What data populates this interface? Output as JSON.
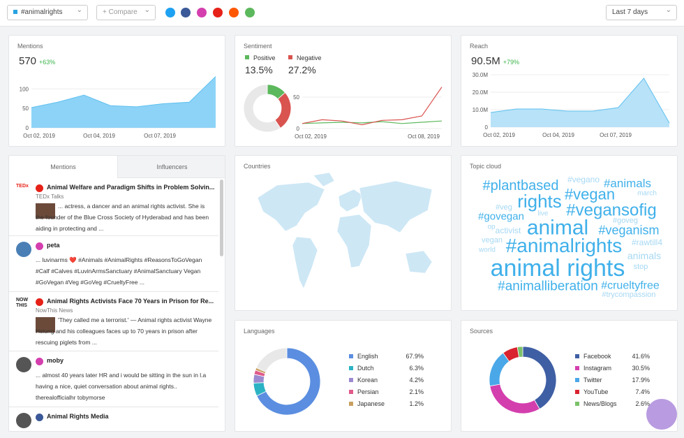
{
  "header": {
    "search": "#animalrights",
    "compare": "+ Compare",
    "range": "Last 7 days"
  },
  "mentions": {
    "title": "Mentions",
    "value": "570",
    "change": "+63%",
    "chart": {
      "type": "area",
      "color": "#8dd3f7",
      "ylim": [
        0,
        140
      ],
      "yticks": [
        0,
        50,
        100
      ],
      "xlabels": [
        "Oct 02, 2019",
        "Oct 04, 2019",
        "Oct 07, 2019"
      ],
      "values": [
        52,
        66,
        84,
        57,
        54,
        62,
        66,
        132
      ]
    }
  },
  "sentiment": {
    "title": "Sentiment",
    "chart": {
      "type": "donut-line",
      "ylim": [
        0,
        70
      ],
      "yticks": [
        0,
        50
      ],
      "xlabels": [
        "Oct 02, 2019",
        "Oct 08, 2019"
      ],
      "series": [
        {
          "name": "Positive",
          "color": "#5cb85c",
          "share": 13.5,
          "share_label": "13.5%",
          "values": [
            8,
            9,
            10,
            9,
            11,
            8,
            10,
            12
          ]
        },
        {
          "name": "Negative",
          "color": "#d9534f",
          "share": 27.2,
          "share_label": "27.2%",
          "values": [
            8,
            14,
            12,
            6,
            13,
            14,
            20,
            66
          ]
        }
      ]
    }
  },
  "reach": {
    "title": "Reach",
    "value": "90.5M",
    "change": "+79%",
    "chart": {
      "type": "area",
      "color": "#b7e2f8",
      "ylim": [
        0,
        30
      ],
      "yticks": [
        0,
        {
          "value": 10,
          "label": "10.0M"
        },
        {
          "value": 20,
          "label": "20.0M"
        },
        {
          "value": 30,
          "label": "30.0M"
        }
      ],
      "xlabels": [
        "Oct 02, 2019",
        "Oct 04, 2019",
        "Oct 07, 2019"
      ],
      "values": [
        8.4,
        10.4,
        10.4,
        9.2,
        9.2,
        11.2,
        28,
        2.4
      ]
    }
  },
  "feed": {
    "tabs": [
      "Mentions",
      "Influencers"
    ],
    "items": [
      {
        "source": "TEDx",
        "title": "Animal Welfare and Paradigm Shifts in Problem Solvin...",
        "author": "TEDx Talks",
        "text": "... actress, a dancer and an animal rights activist. She is the founder of the Blue Cross Society of Hyderabad and has been aiding in protecting and ..."
      },
      {
        "title": "peta",
        "text": "... luvinarms ❤️ #Animals #AnimalRights #ReasonsToGoVegan #Calf #Calves #LuvinArmsSanctuary #AnimalSanctuary Vegan #GoVegan #Veg #GoVeg #CrueltyFree ..."
      },
      {
        "source": "NOW THIS",
        "title": "Animal Rights Activists Face 70 Years in Prison for Re...",
        "author": "NowThis News",
        "text": "'They called me a terrorist.' — Animal rights activist Wayne Hsiung and his colleagues faces up to 70 years in prison after rescuing piglets from ..."
      },
      {
        "title": "moby",
        "text": "... almost 40 years later HR and i would be sitting in the sun in l.a having a nice, quiet conversation about animal rights.. therealofficialhr tobymorse"
      },
      {
        "title": "Animal Rights Media"
      }
    ]
  },
  "countries": {
    "title": "Countries"
  },
  "topics": {
    "title": "Topic cloud",
    "words": [
      "#vegano",
      "#plantbased",
      "#animals",
      "march",
      "#vegan",
      "rights",
      "#veg",
      "live",
      "#vegansofig",
      "#govegan",
      "#goveg",
      "op",
      "animal",
      "activist",
      "#veganism",
      "vegan",
      "#rawtill4",
      "world",
      "#animalrights",
      "animals",
      "animal rights",
      "stop",
      "#animalliberation",
      "#crueltyfree",
      "#trycompassion"
    ]
  },
  "languages": {
    "title": "Languages",
    "chart": {
      "type": "donut",
      "categories": [
        "English",
        "Dutch",
        "Korean",
        "Persian",
        "Japanese"
      ],
      "values": [
        67.9,
        6.3,
        4.2,
        2.1,
        1.2
      ],
      "value_labels": [
        "67.9%",
        "6.3%",
        "4.2%",
        "2.1%",
        "1.2%"
      ],
      "colors": [
        "#5b8ee0",
        "#2bb3c4",
        "#9b8ad0",
        "#e05a8b",
        "#c8a060"
      ]
    }
  },
  "sources": {
    "title": "Sources",
    "chart": {
      "type": "donut",
      "categories": [
        "Facebook",
        "Instagram",
        "Twitter",
        "YouTube",
        "News/Blogs"
      ],
      "values": [
        41.6,
        30.5,
        17.9,
        7.4,
        2.6
      ],
      "value_labels": [
        "41.6%",
        "30.5%",
        "17.9%",
        "7.4%",
        "2.6%"
      ],
      "colors": [
        "#3f5fa4",
        "#d43fae",
        "#4aa8e8",
        "#d9232e",
        "#7cc16a"
      ]
    }
  }
}
